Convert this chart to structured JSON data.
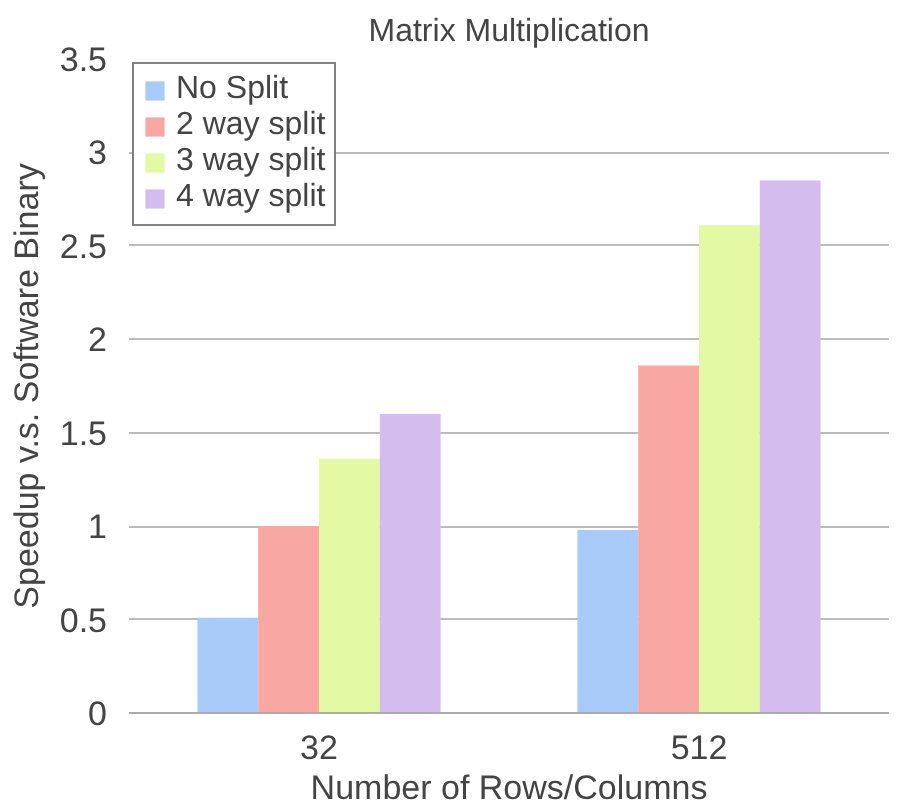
{
  "chart_data": {
    "type": "bar",
    "title": "Matrix Multiplication",
    "xlabel": "Number of Rows/Columns",
    "ylabel": "Speedup v.s. Software Binary",
    "categories": [
      "32",
      "512"
    ],
    "series": [
      {
        "name": "No Split",
        "color": "#a9cbf9",
        "values": [
          0.51,
          0.98
        ]
      },
      {
        "name": "2 way split",
        "color": "#f9a7a3",
        "values": [
          1.0,
          1.86
        ]
      },
      {
        "name": "3 way split",
        "color": "#e4f9a4",
        "values": [
          1.36,
          2.61
        ]
      },
      {
        "name": "4 way split",
        "color": "#d4bdee",
        "values": [
          1.6,
          2.85
        ]
      }
    ],
    "ylim": [
      0,
      3.5
    ],
    "yticks": [
      0,
      0.5,
      1,
      1.5,
      2,
      2.5,
      3,
      3.5
    ],
    "grid": "y",
    "legend": "top left"
  }
}
